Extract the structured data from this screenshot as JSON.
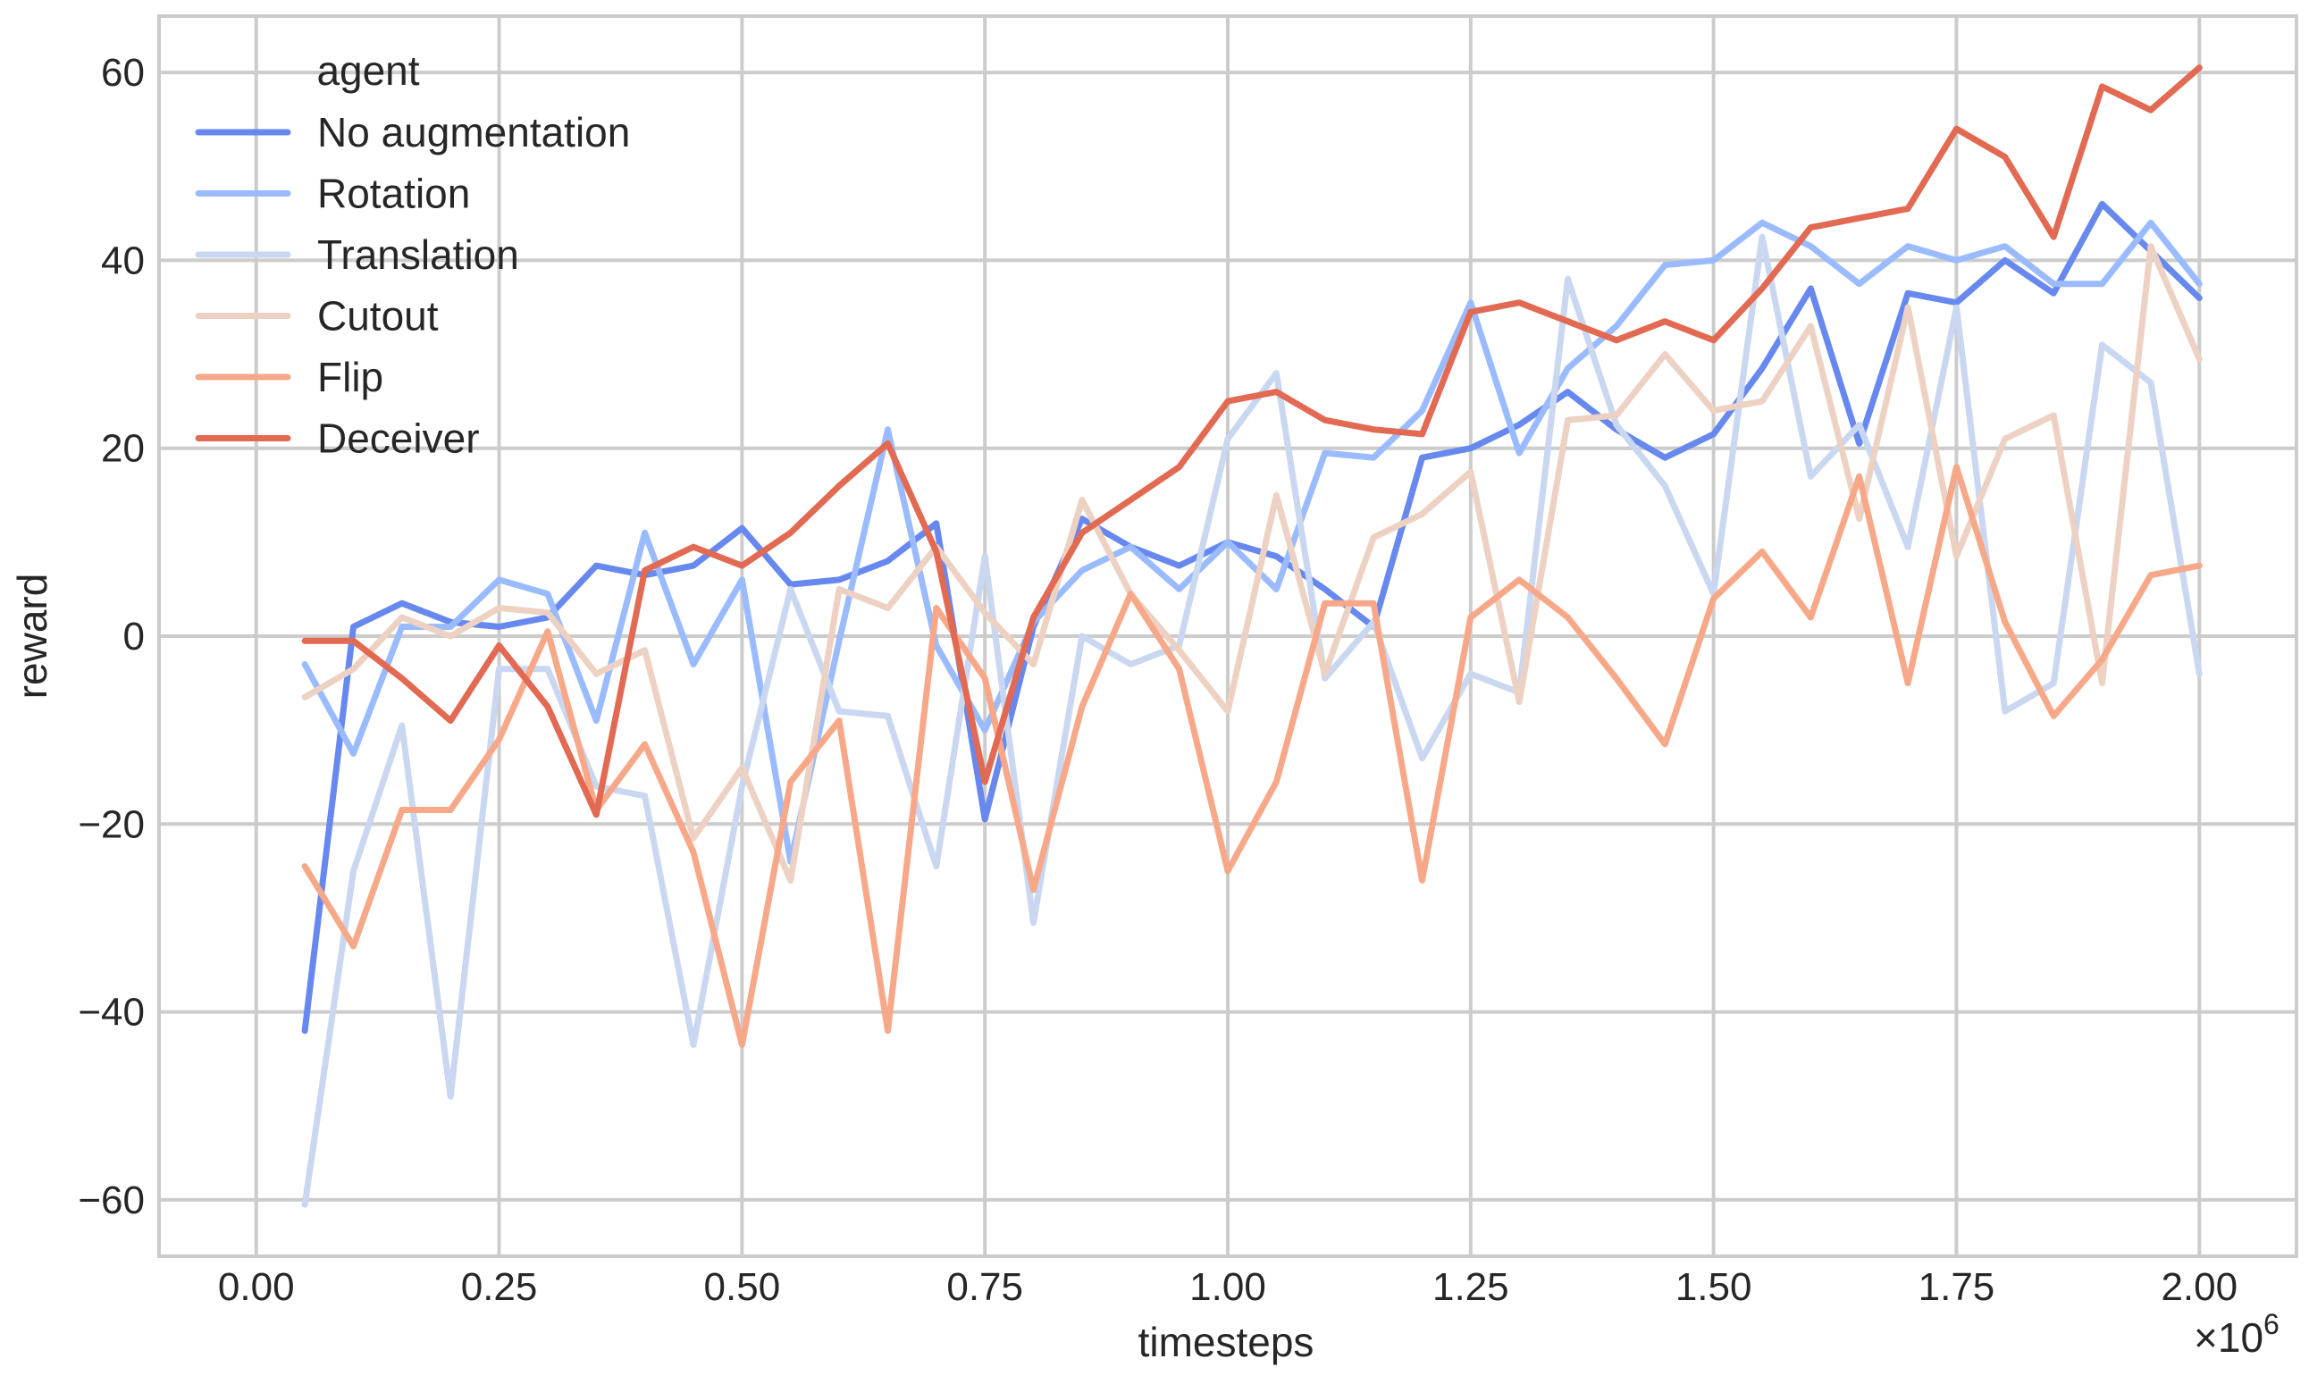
{
  "chart_data": {
    "type": "line",
    "xlabel": "timesteps",
    "ylabel": "reward",
    "x_multiplier_label": "×10",
    "x_multiplier_exp": "6",
    "xlim": [
      -0.1,
      2.1
    ],
    "ylim": [
      -66,
      66
    ],
    "xticks": [
      0.0,
      0.25,
      0.5,
      0.75,
      1.0,
      1.25,
      1.5,
      1.75,
      2.0
    ],
    "xtick_labels": [
      "0.00",
      "0.25",
      "0.50",
      "0.75",
      "1.00",
      "1.25",
      "1.50",
      "1.75",
      "2.00"
    ],
    "yticks": [
      -60,
      -40,
      -20,
      0,
      20,
      40,
      60
    ],
    "ytick_labels": [
      "−60",
      "−40",
      "−20",
      "0",
      "20",
      "40",
      "60"
    ],
    "grid": true,
    "legend_title": "agent",
    "legend_position": "top-left",
    "x": [
      0.05,
      0.1,
      0.15,
      0.2,
      0.25,
      0.3,
      0.35,
      0.4,
      0.45,
      0.5,
      0.55,
      0.6,
      0.65,
      0.7,
      0.75,
      0.8,
      0.85,
      0.9,
      0.95,
      1.0,
      1.05,
      1.1,
      1.15,
      1.2,
      1.25,
      1.3,
      1.35,
      1.4,
      1.45,
      1.5,
      1.55,
      1.6,
      1.65,
      1.7,
      1.75,
      1.8,
      1.85,
      1.9,
      1.95,
      2.0
    ],
    "series": [
      {
        "name": "No augmentation",
        "color": "#6788ee",
        "values": [
          -42,
          1,
          3.5,
          1.5,
          1,
          2,
          7.5,
          6.5,
          7.5,
          11.5,
          5.5,
          6,
          8,
          12,
          -19.5,
          1,
          12.5,
          9.5,
          7.5,
          10,
          8.5,
          5,
          1,
          19,
          20,
          22.5,
          26,
          22,
          19,
          21.5,
          28.5,
          37,
          20.5,
          36.5,
          35.5,
          40,
          36.5,
          46,
          41,
          36
        ]
      },
      {
        "name": "Rotation",
        "color": "#9abbff",
        "values": [
          -3,
          -12.5,
          1,
          1,
          6,
          4.5,
          -9,
          11,
          -3,
          6,
          -24,
          -0.5,
          22,
          -1,
          -10,
          1.5,
          7,
          9.5,
          5,
          10,
          5,
          19.5,
          19,
          24,
          35.5,
          19.5,
          28.5,
          33,
          39.5,
          40,
          44,
          41.5,
          37.5,
          41.5,
          40,
          41.5,
          37.5,
          37.5,
          44,
          37.5
        ]
      },
      {
        "name": "Translation",
        "color": "#c9d7f0",
        "values": [
          -60.5,
          -25,
          -9.5,
          -49,
          -3.5,
          -3.5,
          -16,
          -17,
          -43.5,
          -16,
          5,
          -8,
          -8.5,
          -24.5,
          8.5,
          -30.5,
          0,
          -3,
          -1,
          21,
          28,
          -4.5,
          1.5,
          -13,
          -4,
          -6,
          38,
          22.5,
          16,
          4.5,
          42.5,
          17,
          22.5,
          9.5,
          35,
          -8,
          -5,
          31,
          27,
          -4
        ]
      },
      {
        "name": "Cutout",
        "color": "#edd1c2",
        "values": [
          -6.5,
          -3.5,
          2,
          0,
          3,
          2.5,
          -4,
          -1.5,
          -21.5,
          -14,
          -26,
          5,
          3,
          9.5,
          2.5,
          -3,
          14.5,
          4.5,
          -1.5,
          -8,
          15,
          -4,
          10.5,
          13,
          17.5,
          -7,
          23,
          23.5,
          30,
          24,
          25,
          33,
          12.5,
          35,
          8.5,
          21,
          23.5,
          -5,
          41.5,
          29.5
        ]
      },
      {
        "name": "Flip",
        "color": "#f7a889",
        "values": [
          -24.5,
          -33,
          -18.5,
          -18.5,
          -11,
          0.5,
          -18.5,
          -11.5,
          -23,
          -43.5,
          -15.5,
          -9,
          -42,
          3,
          -4.5,
          -27,
          -7.5,
          4.5,
          -3.5,
          -25,
          -15.5,
          3.5,
          3.5,
          -26,
          2,
          6,
          2,
          -4.5,
          -11.5,
          4,
          9,
          2,
          17,
          -5,
          18,
          1.5,
          -8.5,
          -2.5,
          6.5,
          7.5
        ]
      },
      {
        "name": "Deceiver",
        "color": "#e26952",
        "values": [
          -0.5,
          -0.5,
          -4.5,
          -9,
          -1,
          -7.5,
          -19,
          7,
          9.5,
          7.5,
          11,
          16,
          20.5,
          9,
          -15.5,
          2,
          11,
          14.5,
          18,
          25,
          26,
          23,
          22,
          21.5,
          34.5,
          35.5,
          33.5,
          31.5,
          33.5,
          31.5,
          37,
          43.5,
          44.5,
          45.5,
          54,
          51,
          42.5,
          58.5,
          56,
          60.5
        ]
      }
    ]
  }
}
